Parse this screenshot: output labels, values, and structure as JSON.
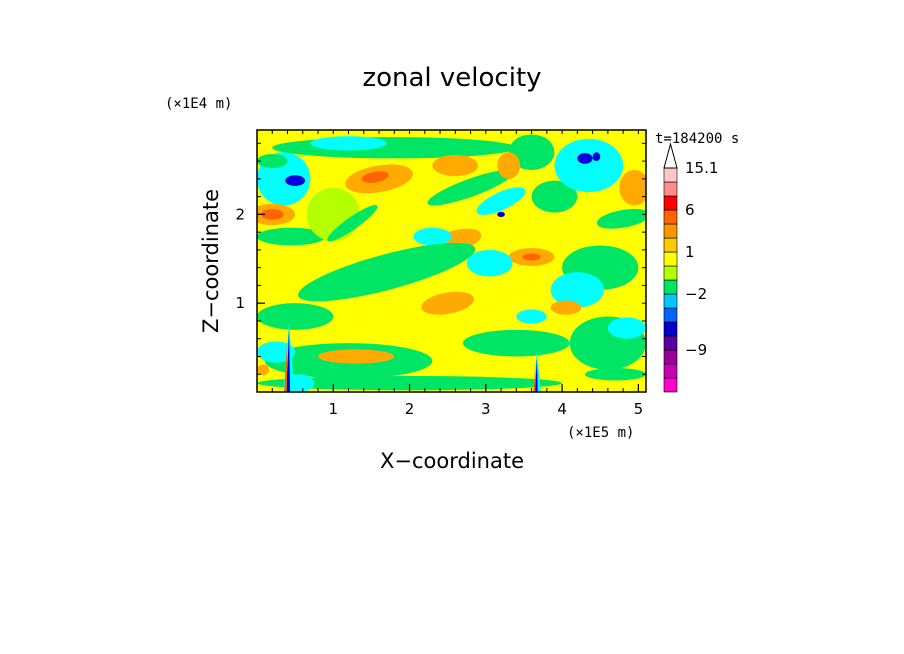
{
  "chart_data": {
    "type": "heatmap",
    "title": "zonal velocity",
    "xlabel": "X−coordinate",
    "ylabel": "Z−coordinate",
    "x_unit": "(×1E5 m)",
    "y_unit": "(×1E4 m)",
    "time_label": "t=184200 s",
    "xlim": [
      0,
      5.1
    ],
    "ylim": [
      0,
      2.95
    ],
    "x_ticks": [
      1,
      2,
      3,
      4,
      5
    ],
    "y_ticks": [
      1,
      2
    ],
    "x_tick_labels": [
      "1",
      "2",
      "3",
      "4",
      "5"
    ],
    "y_tick_labels": [
      "1",
      "2"
    ],
    "colorbar": {
      "levels": [
        {
          "color": "#ff00c8",
          "label": ""
        },
        {
          "color": "#c800b4",
          "label": ""
        },
        {
          "color": "#960096",
          "label": "−9"
        },
        {
          "color": "#5a00a0",
          "label": ""
        },
        {
          "color": "#0000c8",
          "label": ""
        },
        {
          "color": "#0064ff",
          "label": ""
        },
        {
          "color": "#00c8ff",
          "label": "−2"
        },
        {
          "color": "#00e664",
          "label": ""
        },
        {
          "color": "#b4ff00",
          "label": ""
        },
        {
          "color": "#ffff00",
          "label": "1"
        },
        {
          "color": "#ffc800",
          "label": ""
        },
        {
          "color": "#ff9600",
          "label": ""
        },
        {
          "color": "#ff6400",
          "label": "6"
        },
        {
          "color": "#ff0000",
          "label": ""
        },
        {
          "color": "#ff8c8c",
          "label": ""
        },
        {
          "color": "#ffc8c8",
          "label": "15.1"
        }
      ]
    },
    "field_colors": {
      "background": "#ffff00",
      "green": "#00e664",
      "cyan": "#00ffff",
      "orange": "#ffaa00",
      "red": "#ff6400",
      "blue": "#0000dc",
      "lightgreen": "#b4ff00"
    },
    "features": [
      {
        "kind": "ellipse",
        "color": "cyan",
        "x": 0.35,
        "y": 2.4,
        "rx": 0.35,
        "ry": 0.3,
        "rot": 0
      },
      {
        "kind": "ellipse",
        "color": "blue",
        "x": 0.5,
        "y": 2.38,
        "rx": 0.13,
        "ry": 0.06,
        "rot": 0
      },
      {
        "kind": "ellipse",
        "color": "orange",
        "x": 0.2,
        "y": 2.0,
        "rx": 0.3,
        "ry": 0.12,
        "rot": 0
      },
      {
        "kind": "ellipse",
        "color": "red",
        "x": 0.2,
        "y": 2.0,
        "rx": 0.15,
        "ry": 0.06,
        "rot": 0
      },
      {
        "kind": "ellipse",
        "color": "green",
        "x": 0.45,
        "y": 1.75,
        "rx": 0.45,
        "ry": 0.1,
        "rot": 0
      },
      {
        "kind": "ellipse",
        "color": "green",
        "x": 0.2,
        "y": 2.6,
        "rx": 0.2,
        "ry": 0.08,
        "rot": 0
      },
      {
        "kind": "ellipse",
        "color": "green",
        "x": 1.8,
        "y": 2.75,
        "rx": 1.6,
        "ry": 0.12,
        "rot": 0
      },
      {
        "kind": "ellipse",
        "color": "cyan",
        "x": 1.2,
        "y": 2.8,
        "rx": 0.5,
        "ry": 0.08,
        "rot": 0
      },
      {
        "kind": "ellipse",
        "color": "orange",
        "x": 1.6,
        "y": 2.4,
        "rx": 0.45,
        "ry": 0.15,
        "rot": -10
      },
      {
        "kind": "ellipse",
        "color": "red",
        "x": 1.55,
        "y": 2.42,
        "rx": 0.18,
        "ry": 0.06,
        "rot": -10
      },
      {
        "kind": "ellipse",
        "color": "orange",
        "x": 2.6,
        "y": 2.55,
        "rx": 0.3,
        "ry": 0.12,
        "rot": 0
      },
      {
        "kind": "ellipse",
        "color": "green",
        "x": 2.8,
        "y": 2.3,
        "rx": 0.6,
        "ry": 0.1,
        "rot": -20
      },
      {
        "kind": "ellipse",
        "color": "cyan",
        "x": 3.2,
        "y": 2.15,
        "rx": 0.35,
        "ry": 0.1,
        "rot": -25
      },
      {
        "kind": "ellipse",
        "color": "blue",
        "x": 3.2,
        "y": 2.0,
        "rx": 0.05,
        "ry": 0.03,
        "rot": 0
      },
      {
        "kind": "ellipse",
        "color": "green",
        "x": 3.6,
        "y": 2.7,
        "rx": 0.3,
        "ry": 0.2,
        "rot": 0
      },
      {
        "kind": "ellipse",
        "color": "orange",
        "x": 3.3,
        "y": 2.55,
        "rx": 0.15,
        "ry": 0.15,
        "rot": 0
      },
      {
        "kind": "ellipse",
        "color": "green",
        "x": 3.9,
        "y": 2.2,
        "rx": 0.3,
        "ry": 0.18,
        "rot": 0
      },
      {
        "kind": "ellipse",
        "color": "cyan",
        "x": 4.35,
        "y": 2.55,
        "rx": 0.45,
        "ry": 0.3,
        "rot": 0
      },
      {
        "kind": "ellipse",
        "color": "blue",
        "x": 4.3,
        "y": 2.63,
        "rx": 0.1,
        "ry": 0.06,
        "rot": 0
      },
      {
        "kind": "ellipse",
        "color": "blue",
        "x": 4.45,
        "y": 2.65,
        "rx": 0.05,
        "ry": 0.05,
        "rot": 0
      },
      {
        "kind": "ellipse",
        "color": "orange",
        "x": 4.95,
        "y": 2.3,
        "rx": 0.2,
        "ry": 0.2,
        "rot": 0
      },
      {
        "kind": "ellipse",
        "color": "green",
        "x": 4.8,
        "y": 1.95,
        "rx": 0.35,
        "ry": 0.1,
        "rot": -10
      },
      {
        "kind": "ellipse",
        "color": "green",
        "x": 4.5,
        "y": 1.4,
        "rx": 0.5,
        "ry": 0.25,
        "rot": 0
      },
      {
        "kind": "ellipse",
        "color": "cyan",
        "x": 4.2,
        "y": 1.15,
        "rx": 0.35,
        "ry": 0.2,
        "rot": 0
      },
      {
        "kind": "ellipse",
        "color": "orange",
        "x": 3.6,
        "y": 1.52,
        "rx": 0.3,
        "ry": 0.1,
        "rot": 0
      },
      {
        "kind": "ellipse",
        "color": "red",
        "x": 3.6,
        "y": 1.52,
        "rx": 0.12,
        "ry": 0.04,
        "rot": 0
      },
      {
        "kind": "ellipse",
        "color": "cyan",
        "x": 3.05,
        "y": 1.45,
        "rx": 0.3,
        "ry": 0.15,
        "rot": 0
      },
      {
        "kind": "ellipse",
        "color": "orange",
        "x": 2.6,
        "y": 1.7,
        "rx": 0.35,
        "ry": 0.12,
        "rot": -15
      },
      {
        "kind": "ellipse",
        "color": "cyan",
        "x": 2.3,
        "y": 1.75,
        "rx": 0.25,
        "ry": 0.1,
        "rot": 0
      },
      {
        "kind": "ellipse",
        "color": "green",
        "x": 1.7,
        "y": 1.35,
        "rx": 1.2,
        "ry": 0.2,
        "rot": -15
      },
      {
        "kind": "ellipse",
        "color": "orange",
        "x": 2.5,
        "y": 1.0,
        "rx": 0.35,
        "ry": 0.12,
        "rot": -10
      },
      {
        "kind": "ellipse",
        "color": "green",
        "x": 3.4,
        "y": 0.55,
        "rx": 0.7,
        "ry": 0.15,
        "rot": 0
      },
      {
        "kind": "ellipse",
        "color": "cyan",
        "x": 3.6,
        "y": 0.85,
        "rx": 0.2,
        "ry": 0.08,
        "rot": 0
      },
      {
        "kind": "ellipse",
        "color": "green",
        "x": 4.6,
        "y": 0.55,
        "rx": 0.5,
        "ry": 0.3,
        "rot": 0
      },
      {
        "kind": "ellipse",
        "color": "cyan",
        "x": 4.85,
        "y": 0.72,
        "rx": 0.25,
        "ry": 0.12,
        "rot": 0
      },
      {
        "kind": "ellipse",
        "color": "green",
        "x": 1.2,
        "y": 0.35,
        "rx": 1.1,
        "ry": 0.2,
        "rot": 0
      },
      {
        "kind": "ellipse",
        "color": "orange",
        "x": 1.3,
        "y": 0.4,
        "rx": 0.5,
        "ry": 0.08,
        "rot": 0
      },
      {
        "kind": "ellipse",
        "color": "cyan",
        "x": 0.25,
        "y": 0.45,
        "rx": 0.25,
        "ry": 0.12,
        "rot": 0
      },
      {
        "kind": "ellipse",
        "color": "green",
        "x": 0.5,
        "y": 0.85,
        "rx": 0.5,
        "ry": 0.15,
        "rot": 0
      },
      {
        "kind": "ellipse",
        "color": "green",
        "x": 2.0,
        "y": 0.1,
        "rx": 2.0,
        "ry": 0.08,
        "rot": 0
      },
      {
        "kind": "ellipse",
        "color": "cyan",
        "x": 0.55,
        "y": 0.1,
        "rx": 0.2,
        "ry": 0.1,
        "rot": 0
      },
      {
        "kind": "ellipse",
        "color": "orange",
        "x": 0.08,
        "y": 0.25,
        "rx": 0.08,
        "ry": 0.06,
        "rot": 0
      },
      {
        "kind": "ellipse",
        "color": "lightgreen",
        "x": 1.0,
        "y": 2.0,
        "rx": 0.35,
        "ry": 0.3,
        "rot": -30
      },
      {
        "kind": "ellipse",
        "color": "green",
        "x": 1.25,
        "y": 1.9,
        "rx": 0.4,
        "ry": 0.07,
        "rot": -35
      },
      {
        "kind": "ellipse",
        "color": "green",
        "x": 4.7,
        "y": 0.2,
        "rx": 0.4,
        "ry": 0.07,
        "rot": 0
      },
      {
        "kind": "ellipse",
        "color": "orange",
        "x": 4.05,
        "y": 0.95,
        "rx": 0.2,
        "ry": 0.08,
        "rot": 0
      },
      {
        "kind": "spike",
        "x": 0.42,
        "y": 0.0,
        "h": 0.78,
        "w": 0.14
      },
      {
        "kind": "spike",
        "x": 3.67,
        "y": 0.0,
        "h": 0.45,
        "w": 0.1
      }
    ]
  }
}
